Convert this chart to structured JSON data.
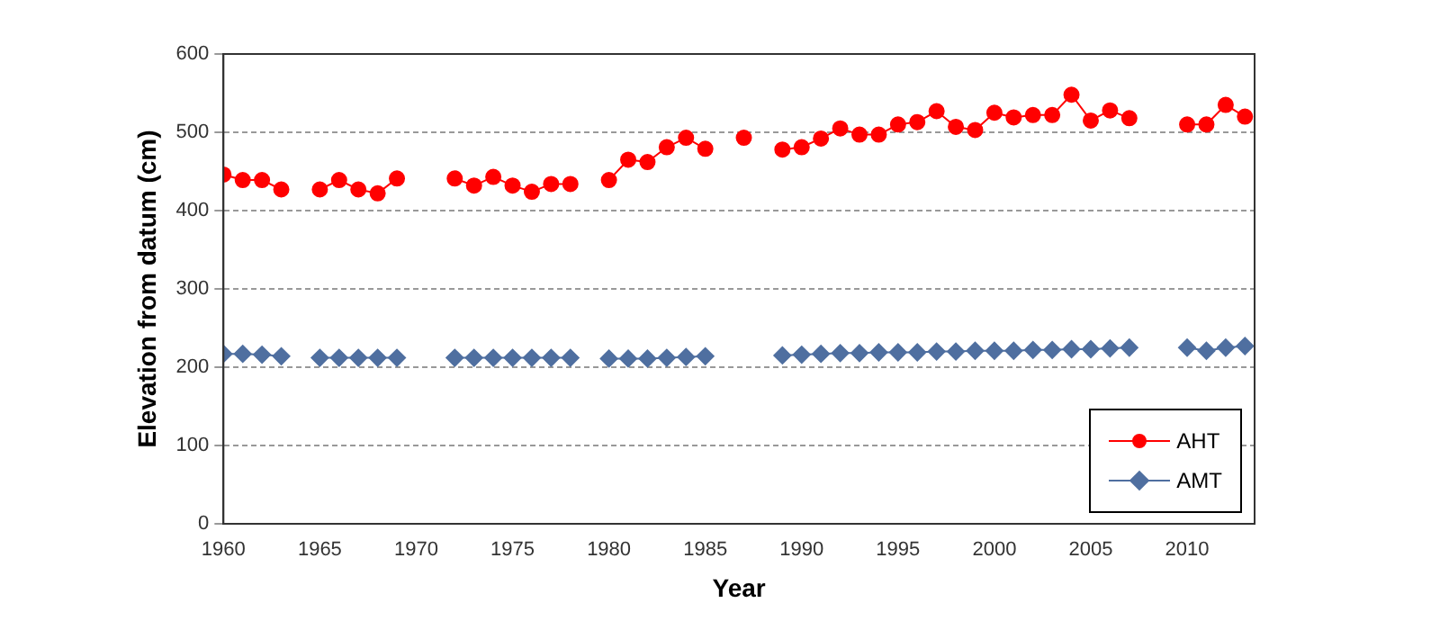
{
  "chart_data": {
    "type": "line",
    "xlabel": "Year",
    "ylabel": "Elevation from datum (cm)",
    "x": [
      1960,
      1961,
      1962,
      1963,
      1964,
      1965,
      1966,
      1967,
      1968,
      1969,
      1970,
      1971,
      1972,
      1973,
      1974,
      1975,
      1976,
      1977,
      1978,
      1979,
      1980,
      1981,
      1982,
      1983,
      1984,
      1985,
      1986,
      1987,
      1988,
      1989,
      1990,
      1991,
      1992,
      1993,
      1994,
      1995,
      1996,
      1997,
      1998,
      1999,
      2000,
      2001,
      2002,
      2003,
      2004,
      2005,
      2006,
      2007,
      2008,
      2009,
      2010,
      2011,
      2012,
      2013
    ],
    "series": [
      {
        "name": "AHT",
        "color": "#ff0000",
        "marker": "circle",
        "values": [
          446,
          439,
          439,
          427,
          null,
          427,
          439,
          427,
          422,
          441,
          null,
          null,
          441,
          432,
          443,
          432,
          424,
          434,
          434,
          null,
          439,
          465,
          462,
          481,
          493,
          479,
          null,
          493,
          null,
          478,
          481,
          492,
          505,
          497,
          497,
          510,
          513,
          527,
          507,
          503,
          525,
          519,
          522,
          522,
          548,
          515,
          528,
          518,
          null,
          null,
          510,
          510,
          535,
          520
        ]
      },
      {
        "name": "AMT",
        "color": "#4f6fa0",
        "marker": "diamond",
        "values": [
          217,
          217,
          216,
          214,
          null,
          212,
          212,
          212,
          212,
          212,
          null,
          null,
          212,
          212,
          212,
          212,
          212,
          212,
          212,
          null,
          211,
          211,
          211,
          212,
          213,
          214,
          null,
          null,
          null,
          215,
          216,
          217,
          218,
          218,
          219,
          219,
          219,
          220,
          220,
          221,
          221,
          221,
          222,
          222,
          223,
          223,
          224,
          225,
          null,
          null,
          225,
          221,
          225,
          227
        ]
      }
    ],
    "xlim": [
      1960,
      2013.5
    ],
    "xticks": [
      1960,
      1965,
      1970,
      1975,
      1980,
      1985,
      1990,
      1995,
      2000,
      2005,
      2010
    ],
    "ylim": [
      0,
      600
    ],
    "yticks": [
      0,
      100,
      200,
      300,
      400,
      500,
      600
    ],
    "grid": "y",
    "legend": "bottom right"
  }
}
